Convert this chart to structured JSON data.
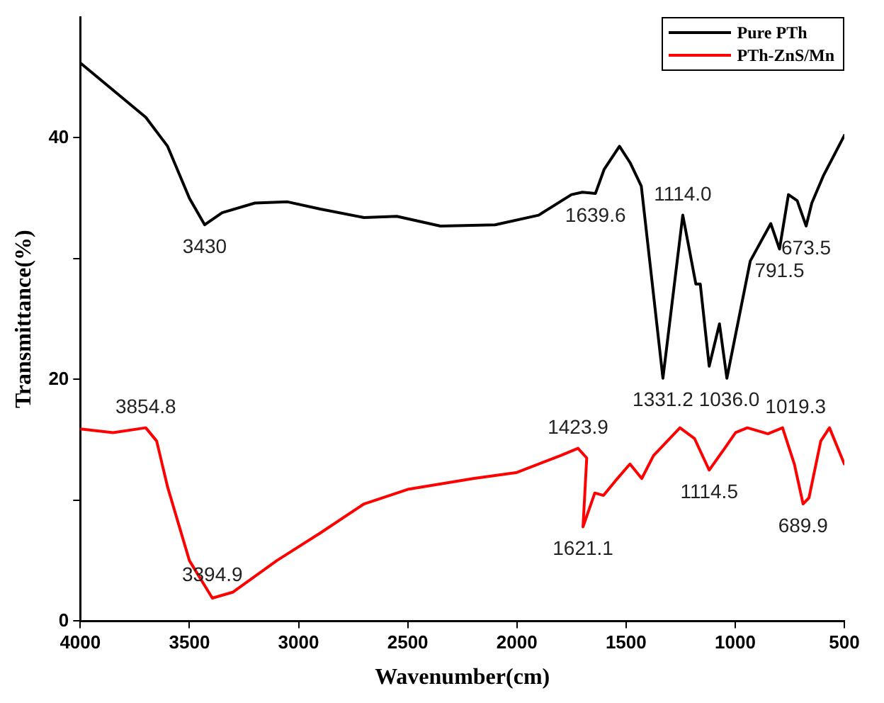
{
  "chart_data": {
    "type": "line",
    "xlabel": "Wavenumber(cm)",
    "ylabel": "Transmittance(%)",
    "xlim": [
      4000,
      500
    ],
    "xticks": [
      4000,
      3500,
      3000,
      2500,
      2000,
      1500,
      1000,
      500
    ],
    "ylim": [
      0,
      50
    ],
    "yticks": [
      0,
      {
        "value": 10,
        "label": null
      },
      20,
      {
        "value": 30,
        "label": null
      },
      40
    ],
    "grid": false,
    "legend": "top right",
    "marker": "none",
    "line_style": "solid",
    "series": [
      {
        "name": "Pure PTh",
        "color": "#000000",
        "x": [
          4000,
          3700,
          3600,
          3500,
          3430,
          3350,
          3200,
          3050,
          2900,
          2700,
          2550,
          2350,
          2100,
          1900,
          1750,
          1700,
          1640,
          1600,
          1530,
          1480,
          1430,
          1331,
          1240,
          1180,
          1160,
          1119,
          1072,
          1038,
          931,
          837,
          797,
          756,
          716,
          675,
          649,
          595,
          500
        ],
        "values": [
          46.2,
          41.7,
          39.3,
          35.0,
          32.8,
          33.8,
          34.6,
          34.7,
          34.1,
          33.4,
          33.5,
          32.7,
          32.8,
          33.6,
          35.3,
          35.5,
          35.4,
          37.4,
          39.3,
          37.9,
          36.0,
          20.1,
          33.6,
          27.9,
          27.9,
          21.1,
          24.6,
          20.1,
          29.8,
          32.9,
          30.8,
          35.3,
          34.8,
          32.7,
          34.6,
          36.9,
          40.2
        ]
      },
      {
        "name": "PTh-ZnS/Mn",
        "color": "#ff0000",
        "x": [
          4000,
          3850,
          3700,
          3650,
          3600,
          3500,
          3395,
          3300,
          3100,
          2900,
          2700,
          2500,
          2200,
          2000,
          1800,
          1720,
          1680,
          1697,
          1643,
          1603,
          1549,
          1482,
          1428,
          1374,
          1253,
          1186,
          1119,
          1052,
          1025,
          998,
          944,
          850,
          783,
          729,
          689,
          662,
          608,
          568,
          500
        ],
        "values": [
          15.9,
          15.6,
          16.0,
          14.9,
          11.1,
          5.0,
          1.9,
          2.4,
          5.0,
          7.3,
          9.7,
          10.9,
          11.8,
          12.3,
          13.7,
          14.3,
          13.5,
          7.8,
          10.6,
          10.4,
          11.6,
          13.0,
          11.8,
          13.7,
          16.0,
          15.1,
          12.5,
          14.2,
          14.9,
          15.6,
          16.0,
          15.5,
          16.0,
          13.0,
          9.7,
          10.2,
          14.9,
          16.0,
          13.0
        ]
      }
    ],
    "annotations": [
      {
        "text": "3430",
        "x": 3430,
        "y": 32.8
      },
      {
        "text": "1639.6",
        "x": 1640,
        "y": 35.4
      },
      {
        "text": "1114.0",
        "x": 1240,
        "y": 33.6
      },
      {
        "text": "791.5",
        "x": 797,
        "y": 30.8
      },
      {
        "text": "673.5",
        "x": 675,
        "y": 32.7
      },
      {
        "text": "1331.2",
        "x": 1331,
        "y": 20.1
      },
      {
        "text": "1036.0",
        "x": 1038,
        "y": 20.1
      },
      {
        "text": "3854.8",
        "x": 3700,
        "y": 16.0
      },
      {
        "text": "3394.9",
        "x": 3395,
        "y": 1.9
      },
      {
        "text": "1621.1",
        "x": 1697,
        "y": 7.8
      },
      {
        "text": "1423.9",
        "x": 1720,
        "y": 14.3
      },
      {
        "text": "1114.5",
        "x": 1119,
        "y": 12.5
      },
      {
        "text": "1019.3",
        "x": 944,
        "y": 16.0
      },
      {
        "text": "689.9",
        "x": 689,
        "y": 9.7
      }
    ]
  }
}
